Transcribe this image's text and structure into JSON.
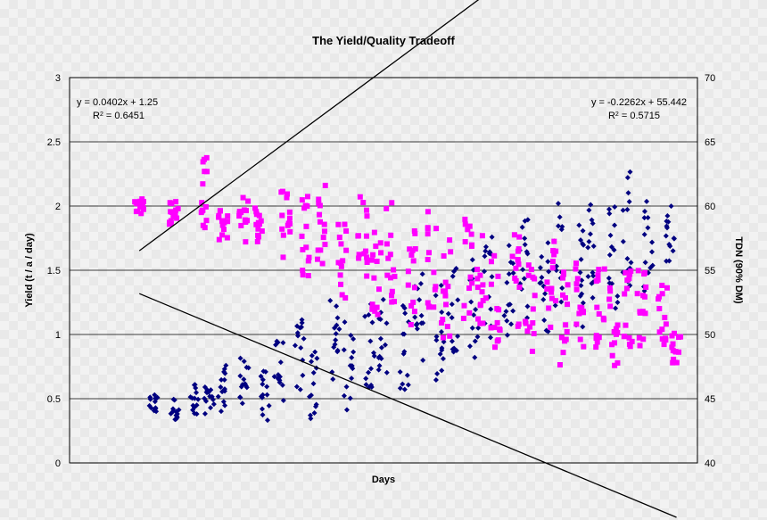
{
  "chart_data": {
    "type": "scatter",
    "title": "The Yield/Quality Tradeoff",
    "xlabel": "Days",
    "ylabel": "Yield (t / a / day)",
    "y2label": "TDN (90% DM)",
    "xlim": [
      0,
      90
    ],
    "ylim": [
      0,
      3
    ],
    "y2lim": [
      40,
      70
    ],
    "yticks": [
      "0",
      "0.5",
      "1",
      "1.5",
      "2",
      "2.5",
      "3"
    ],
    "y2ticks": [
      "40",
      "45",
      "50",
      "55",
      "60",
      "65",
      "70"
    ],
    "grid": true,
    "series": [
      {
        "axis": "left",
        "color": "#000080",
        "marker": "diamond",
        "trendline": {
          "slope": 0.0402,
          "intercept": 1.25,
          "x_range": [
            10,
            86
          ]
        },
        "equation": "y = 0.0402x + 1.25",
        "r2_prefix": "R",
        "r2_suffix": " = 0.6451",
        "x_center": [
          12,
          15,
          18,
          20,
          22,
          25,
          28,
          30,
          33,
          35,
          38,
          40,
          43,
          45,
          48,
          50,
          53,
          55,
          58,
          60,
          63,
          65,
          68,
          70,
          73,
          75,
          78,
          80,
          83,
          86
        ],
        "y_center": [
          0.45,
          0.42,
          0.5,
          0.46,
          0.58,
          0.66,
          0.52,
          0.72,
          0.82,
          0.62,
          0.92,
          0.76,
          0.9,
          0.98,
          0.9,
          1.1,
          1.04,
          1.26,
          1.2,
          1.36,
          1.3,
          1.52,
          1.38,
          1.6,
          1.5,
          1.7,
          1.6,
          1.88,
          1.72,
          1.8
        ],
        "y_spread": [
          0.08,
          0.1,
          0.12,
          0.15,
          0.18,
          0.2,
          0.2,
          0.25,
          0.3,
          0.3,
          0.35,
          0.35,
          0.35,
          0.35,
          0.35,
          0.4,
          0.4,
          0.4,
          0.4,
          0.4,
          0.4,
          0.4,
          0.4,
          0.45,
          0.45,
          0.45,
          0.45,
          0.5,
          0.4,
          0.25
        ]
      },
      {
        "axis": "right",
        "color": "#ff00ff",
        "marker": "square",
        "trendline": {
          "slope": -0.2262,
          "intercept": 55.442,
          "x_range": [
            10,
            87
          ]
        },
        "equation": "y = -0.2262x + 55.442",
        "r2_prefix": "R",
        "r2_suffix": " = 0.5715",
        "x_center": [
          10,
          15,
          19,
          22,
          25,
          27,
          31,
          34,
          36,
          39,
          42,
          44,
          46,
          49,
          52,
          54,
          57,
          59,
          61,
          64,
          66,
          69,
          71,
          73,
          76,
          78,
          80,
          82,
          85,
          87
        ],
        "y_center": [
          60,
          59.5,
          61,
          58.5,
          59,
          58.5,
          59,
          57.5,
          58.5,
          56,
          57.5,
          55,
          56.5,
          54.5,
          56,
          53.5,
          55,
          54,
          53,
          54.5,
          52.5,
          54,
          51.5,
          53,
          52.5,
          51,
          52,
          52,
          51.5,
          49
        ],
        "y_spread": [
          0.6,
          1,
          3,
          1.2,
          2,
          1.5,
          3,
          3.5,
          3.5,
          3.5,
          3.5,
          3.5,
          4,
          4,
          4,
          4,
          4,
          4,
          4,
          4,
          4,
          4,
          4,
          4,
          3.5,
          3.5,
          3,
          3,
          2.5,
          1.2
        ]
      }
    ]
  }
}
